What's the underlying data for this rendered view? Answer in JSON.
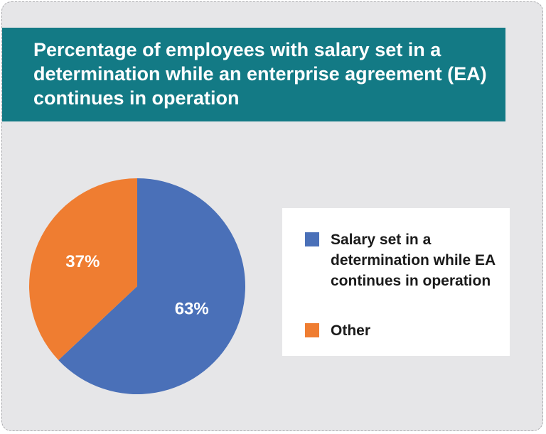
{
  "title": "Percentage of employees with salary set in a determination while an enterprise agreement (EA) continues in operation",
  "colors": {
    "banner": "#137a85",
    "background": "#e6e6e8",
    "series_blue": "#4a70b8",
    "series_orange": "#ef7d31"
  },
  "chart_data": {
    "type": "pie",
    "title": "Percentage of employees with salary set in a determination while an enterprise agreement (EA) continues in operation",
    "slices": [
      {
        "label": "Salary set in a determination while EA continues in operation",
        "value": 63,
        "display": "63%",
        "color": "#4a70b8"
      },
      {
        "label": "Other",
        "value": 37,
        "display": "37%",
        "color": "#ef7d31"
      }
    ],
    "legend_position": "right"
  }
}
